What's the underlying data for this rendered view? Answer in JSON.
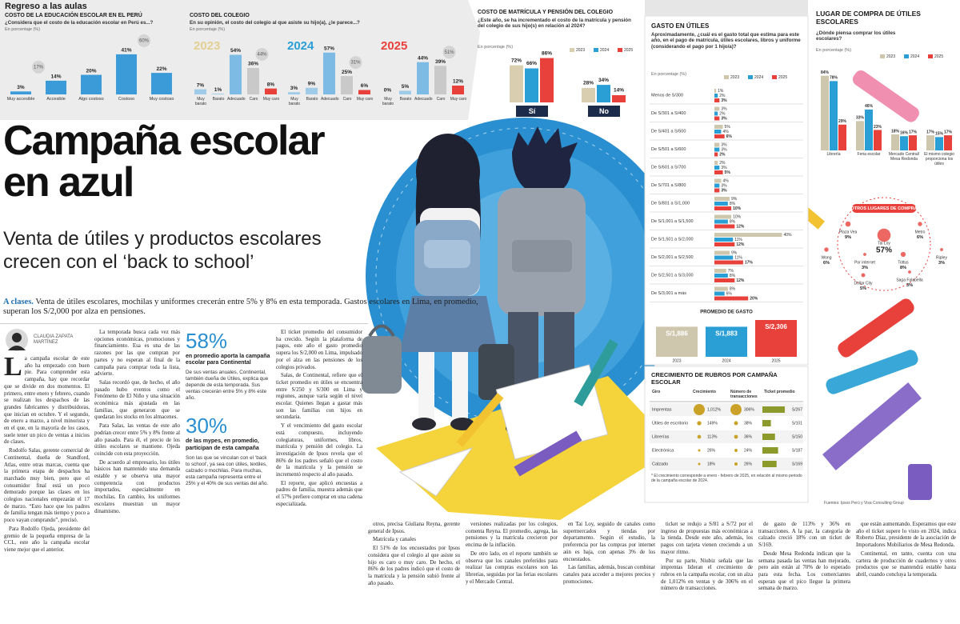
{
  "header": {
    "kicker": "Regreso a las aulas"
  },
  "education_chart": {
    "title": "COSTO DE LA EDUCACIÓN ESCOLAR EN EL PERÚ",
    "question": "¿Considera que el costo de la educación escolar en Perú es...?",
    "unit": "En porcentaje (%)",
    "categories": [
      "Muy accesible",
      "Accesible",
      "Algo costoso",
      "Costoso",
      "Muy costoso"
    ],
    "values": [
      3,
      14,
      20,
      41,
      22
    ],
    "value_labels": [
      "3%",
      "14%",
      "20%",
      "41%",
      "22%"
    ],
    "color": "#3b9ad8",
    "ylim": [
      0,
      45
    ],
    "groups": [
      {
        "value": 17,
        "label": "17%"
      },
      {
        "value": 60,
        "label": "60%"
      }
    ]
  },
  "school_cost_chart": {
    "title": "COSTO DEL COLEGIO",
    "question": "En su opinión, el costo del colegio al que asiste su hijo(a), ¿le parece...?",
    "unit": "En porcentaje (%)",
    "categories": [
      "Muy barato",
      "Barato",
      "Adecuado",
      "Caro",
      "Muy caro"
    ],
    "colors": [
      "#9fcbe9",
      "#9fcbe9",
      "#7dbbe4",
      "#c9c9c9",
      "#e8413c"
    ],
    "ylim": [
      0,
      60
    ],
    "series": [
      {
        "name": "2023",
        "color": "#e3cf92",
        "values": [
          7,
          1,
          54,
          36,
          8
        ],
        "value_labels": [
          "7%",
          "1%",
          "54%",
          "36%",
          "8%"
        ],
        "group": {
          "value": 44,
          "label": "44%"
        }
      },
      {
        "name": "2024",
        "color": "#2a9fd6",
        "values": [
          3,
          9,
          57,
          25,
          6
        ],
        "value_labels": [
          "3%",
          "9%",
          "57%",
          "25%",
          "6%"
        ],
        "group": {
          "value": 31,
          "label": "31%"
        }
      },
      {
        "name": "2025",
        "color": "#e8413c",
        "values": [
          0,
          5,
          44,
          39,
          12
        ],
        "value_labels": [
          "0%",
          "5%",
          "44%",
          "39%",
          "12%"
        ],
        "group": {
          "value": 51,
          "label": "51%"
        }
      }
    ]
  },
  "tuition_chart": {
    "title": "COSTO DE MATRÍCULA Y PENSIÓN DEL COLEGIO",
    "question": "¿Este año, se ha incrementado el costo de la matrícula y pensión del colegio de sus hijo(s) en relación al 2024?",
    "unit": "En porcentaje (%)",
    "categories": [
      "Sí",
      "No"
    ],
    "ylim": [
      0,
      90
    ],
    "series": [
      {
        "name": "2023",
        "color": "#d9cfb0",
        "values": [
          72,
          28
        ],
        "value_labels": [
          "72%",
          "28%"
        ]
      },
      {
        "name": "2024",
        "color": "#2a9fd6",
        "values": [
          66,
          34
        ],
        "value_labels": [
          "66%",
          "34%"
        ]
      },
      {
        "name": "2025",
        "color": "#e8413c",
        "values": [
          86,
          14
        ],
        "value_labels": [
          "86%",
          "14%"
        ]
      }
    ]
  },
  "spend_chart": {
    "title": "GASTO EN ÚTILES",
    "question": "Aproximadamente, ¿cuál es el gasto total que estima para este año, en el pago de matrícula, útiles escolares, libros y uniforme (considerando el pago por 1 hijo/a)?",
    "unit": "En porcentaje (%)",
    "categories": [
      "Menos de S/300",
      "De S/301 a S/400",
      "De S/401 a S/500",
      "De S/501 a S/600",
      "De S/601 a S/700",
      "De S/701 a S/800",
      "De S/801 a S/1,000",
      "De S/1,001 a S/1,500",
      "De S/1,501 a S/2,000",
      "De S/2,001 a S/2,500",
      "De S/2,501 a S/3,000",
      "De S/3,001 a más"
    ],
    "xlim": [
      0,
      45
    ],
    "series": [
      {
        "name": "2023",
        "color": "#cfc7ad",
        "values": [
          1,
          3,
          5,
          3,
          2,
          4,
          9,
          10,
          40,
          9,
          7,
          8
        ],
        "value_labels": [
          "1%",
          "3%",
          "5%",
          "3%",
          "2%",
          "4%",
          "9%",
          "10%",
          "40%",
          "9%",
          "7%",
          "8%"
        ]
      },
      {
        "name": "2024",
        "color": "#2a9fd6",
        "values": [
          2,
          2,
          4,
          3,
          3,
          3,
          8,
          8,
          11,
          11,
          8,
          6
        ],
        "value_labels": [
          "2%",
          "2%",
          "4%",
          "3%",
          "3%",
          "3%",
          "8%",
          "8%",
          "11%",
          "11%",
          "8%",
          "6%"
        ]
      },
      {
        "name": "2025",
        "color": "#e8413c",
        "values": [
          3,
          3,
          6,
          2,
          5,
          3,
          10,
          12,
          12,
          17,
          12,
          20
        ],
        "value_labels": [
          "3%",
          "3%",
          "6%",
          "2%",
          "5%",
          "3%",
          "10%",
          "12%",
          "12%",
          "17%",
          "12%",
          "20%"
        ]
      }
    ],
    "average": {
      "title": "PROMEDIO DE GASTO",
      "values": [
        {
          "value": 1886,
          "label": "S/1,886"
        },
        {
          "value": 1883,
          "label": "S/1,883"
        },
        {
          "value": 2306,
          "label": "S/2,306"
        }
      ]
    }
  },
  "place_chart": {
    "title": "LUGAR DE COMPRA DE ÚTILES ESCOLARES",
    "question": "¿Dónde piensa comprar los útiles escolares?",
    "unit": "En porcentaje (%)",
    "categories": [
      "Librería",
      "Feria escolar",
      "Mercado Central/ Mesa Redonda",
      "El mismo colegio proporciona los útiles"
    ],
    "ylim": [
      0,
      90
    ],
    "series": [
      {
        "name": "2023",
        "color": "#cfc7ad",
        "values": [
          84,
          33,
          18,
          17
        ],
        "value_labels": [
          "84%",
          "33%",
          "18%",
          "17%"
        ]
      },
      {
        "name": "2024",
        "color": "#2a9fd6",
        "values": [
          78,
          46,
          16,
          15
        ],
        "value_labels": [
          "78%",
          "46%",
          "16%",
          "15%"
        ]
      },
      {
        "name": "2025",
        "color": "#e8413c",
        "values": [
          29,
          23,
          17,
          17
        ],
        "value_labels": [
          "29%",
          "23%",
          "17%",
          "17%"
        ]
      }
    ],
    "other_places": {
      "title": "OTROS LUGARES DE COMPRA",
      "items": [
        {
          "name": "Tai Loy",
          "value": 57,
          "label": "57%"
        },
        {
          "name": "Plaza Vea",
          "value": 9,
          "label": "9%"
        },
        {
          "name": "Metro",
          "value": 6,
          "label": "6%"
        },
        {
          "name": "Wong",
          "value": 6,
          "label": "6%"
        },
        {
          "name": "Por internet",
          "value": 3,
          "label": "3%"
        },
        {
          "name": "Tottus",
          "value": 8,
          "label": "8%"
        },
        {
          "name": "Ripley",
          "value": 3,
          "label": "3%"
        },
        {
          "name": "Dollar City",
          "value": 5,
          "label": "5%"
        },
        {
          "name": "Saga Falabella",
          "value": 3,
          "label": "3%"
        }
      ]
    }
  },
  "growth_table": {
    "title": "CRECIMIENTO DE RUBROS POR CAMPAÑA ESCOLAR",
    "columns": [
      "Giro",
      "Crecimiento",
      "Número de transacciones",
      "Ticket promedio"
    ],
    "rows": [
      {
        "name": "Imprentas",
        "growth": {
          "value": 1012,
          "label": "1,012%"
        },
        "transactions": {
          "value": 306,
          "label": "306%"
        },
        "ticket": {
          "value": 267,
          "label": "S/267"
        }
      },
      {
        "name": "Útiles de escritorio",
        "growth": {
          "value": 149,
          "label": "149%"
        },
        "transactions": {
          "value": 38,
          "label": "38%"
        },
        "ticket": {
          "value": 101,
          "label": "S/101"
        }
      },
      {
        "name": "Librerías",
        "growth": {
          "value": 113,
          "label": "113%"
        },
        "transactions": {
          "value": 36,
          "label": "36%"
        },
        "ticket": {
          "value": 150,
          "label": "S/150"
        }
      },
      {
        "name": "Electrónica",
        "growth": {
          "value": 26,
          "label": "26%"
        },
        "transactions": {
          "value": 24,
          "label": "24%"
        },
        "ticket": {
          "value": 187,
          "label": "S/187"
        }
      },
      {
        "name": "Calzado",
        "growth": {
          "value": 18,
          "label": "18%"
        },
        "transactions": {
          "value": 26,
          "label": "26%"
        },
        "ticket": {
          "value": 169,
          "label": "S/169"
        }
      }
    ],
    "note": "* El crecimiento corresponde a enero - febrero de 2025, en relación al mismo periodo de la campaña escolar de 2024."
  },
  "source": "Fuentes: Ipsos Perú y Visa Consulting Group",
  "article": {
    "headline": "Campaña escolar en azul",
    "subtitle": "Venta de útiles y productos escolares crecen con el ‘back to school’",
    "lede_kicker": "A clases.",
    "lede": "Venta de útiles escolares, mochilas y uniformes crecerán entre 5% y 8% en esta temporada. Gastos escolares en Lima, en promedio, superan los S/2,000 por alza en pensiones.",
    "byline": "CLAUDIA ZAPATA MARTÍNEZ",
    "highlights": [
      {
        "figure": "58%",
        "headline": "en promedio aporta la campaña escolar para Continental",
        "text": "De sus ventas anuales, Continental, también dueña de Útiles, explica que depende de esta temporada. Sus ventas crecerán entre 5% y 8% este año."
      },
      {
        "figure": "30%",
        "headline": "de las mypes, en promedio, participan de esta campaña",
        "text": "Son las que se vinculan con el ‘back to school’, ya sea con útiles, textiles, calzado o mochilas. Para muchas, esta campaña representa entre el 25% y el 40% de sus ventas del año."
      }
    ],
    "columns": [
      [
        "La campaña escolar de este año ha empezado con buen pie. Para comprender esta campaña, hay que recordar que se divide en dos momentos. El primero, entre enero y febrero, cuando se realizan los despachos de las grandes fabricantes y distribuidoras, que inician en octubre. Y el segundo, de enero a marzo, a nivel minorista y en el que, en la mayoría de los casos, suele tener un pico de ventas a inicios de clases.",
        "Rodolfo Salas, gerente comercial de Continental, dueña de Standford, Atlas, entre otras marcas, cuenta que la primera etapa de despachos ha marchado muy bien, pero que el consumidor final está un poco demorado porque las clases en los colegios nacionales empezarán el 17 de marzo. “Esto hace que los padres de familia tengan más tiempo y poco a poco vayan comprando”, precisó.",
        "Para Rodolfo Ojeda, presidente del gremio de la pequeña empresa de la CCL, este año la campaña escolar viene mejor que el anterior."
      ],
      [
        "La temporada busca cada vez más opciones económicas, promociones y financiamiento. Esa es una de las razones por las que compran por partes y no esperan al final de la campaña para comprar toda la lista, advierte.",
        "Salas recordó que, de hecho, el año pasado hubo eventos como el Fenómeno de El Niño y una situación económica más ajustada en las familias, que generaron que se quedaran los stocks en los almacenes.",
        "Para Salas, las ventas de este año podrían crecer entre 5% y 8% frente al año pasado. Para él, el precio de los útiles escolares se mantiene. Ojeda coincide con esta proyección.",
        "De acuerdo al empresario, los útiles básicos han mantenido una demanda estable y se observa una mayor competencia con productos importados, especialmente en mochilas. En cambio, los uniformes escolares muestran un mayor dinamismo."
      ],
      [
        "El ticket promedio del consumidor ha crecido. Según la plataforma de pagos, este año el gasto promedio supera los S/2,000 en Lima, impulsado por el alza en las pensiones de los colegios privados.",
        "Salas, de Continental, refiere que el ticket promedio en útiles se encuentra entre S/250 y S/300 en Lima y regiones, aunque varía según el nivel escolar. Quienes llegan a gastar más son las familias con hijos en secundaria.",
        "Y el vencimiento del gasto escolar está compuesto, incluyendo colegiaturas, uniformes, libros, matrícula y pensión del colegio. La investigación de Ipsos revela que el 86% de los padres señaló que el costo de la matrícula y la pensión se incrementó respecto al año pasado.",
        "El reporte, que aplicó encuestas a padres de familia, muestra además que el 57% prefiere comprar en una cadena especializada."
      ],
      [
        "otros, precisa Giuliana Reyna, gerente general de Ipsos.",
        "Matrícula y canales",
        "El 51% de los encuestados por Ipsos considera que el colegio al que asiste su hijo es caro o muy caro. De hecho, el 86% de los padres indicó que el costo de la matrícula y la pensión subió frente al año pasado."
      ],
      [
        "versiones realizadas por los colegios, comenta Reyna. El promedio, agrega, las pensiones y la matrícula crecieron por encima de la inflación.",
        "De otro lado, en el reporte también se observa que los canales preferidos para realizar las compras escolares son las librerías, seguidas por las ferias escolares y el Mercado Central."
      ],
      [
        "en Tai Loy, seguido de canales como supermercados y tiendas por departamento. Según el estudio, la preferencia por las compras por internet aún es baja, con apenas 3% de los encuestados.",
        "Las familias, además, buscan combinar canales para acceder a mejores precios y promociones."
      ],
      [
        "ticket se redujo a S/81 a S/72 por el ingreso de propuestas más económicas a la tienda. Desde este año, además, los pagos con tarjeta vienen creciendo a un mayor ritmo.",
        "Por su parte, Niubiz señala que las imprentas lideran el crecimiento de rubros en la campaña escolar, con un alza de 1,012% en ventas y de 306% en el número de transacciones."
      ],
      [
        "de gasto de 113% y 36% en transacciones. A la par, la categoría de calzado creció 18% con un ticket de S/169.",
        "Desde Mesa Redonda indican que la semana pasada las ventas han mejorado, pero aún están al 70% de lo esperado para esta fecha. Los comerciantes esperan que el pico llegue la primera semana de marzo."
      ],
      [
        "que están aumentando. Esperamos que este año el ticket supere lo visto en 2024, indica Roberto Díaz, presidente de la asociación de Importadores Mobiliarios de Mesa Redonda.",
        "Continental, en tanto, cuenta con una cartera de producción de cuadernos y otros productos que se mantendrá estable hasta abril, cuando concluya la temporada."
      ]
    ]
  }
}
